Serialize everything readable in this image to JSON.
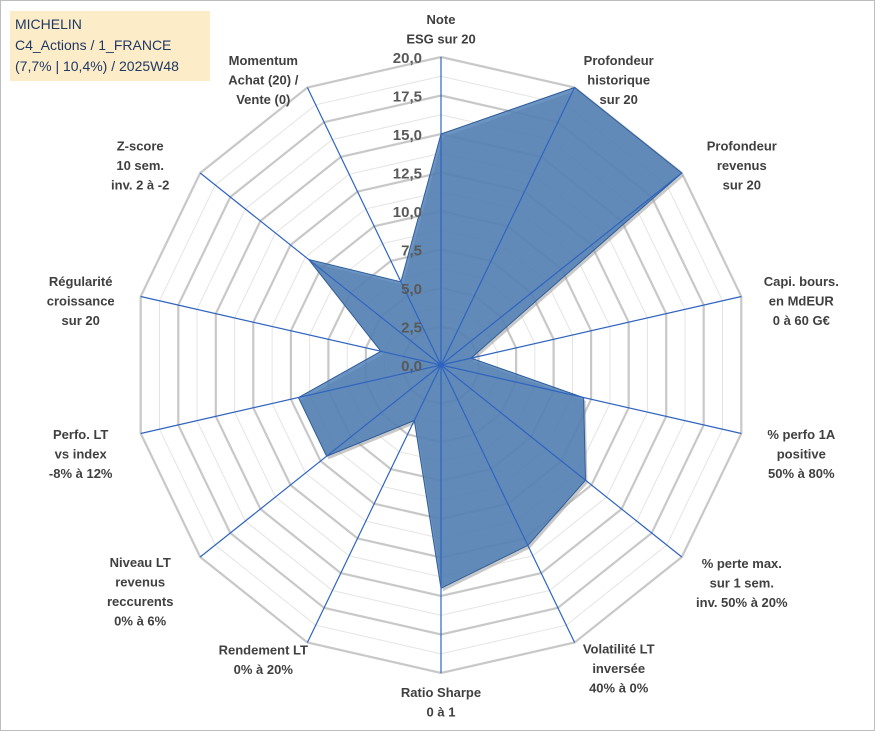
{
  "title_box": {
    "company": "MICHELIN",
    "category": "C4_Actions / 1_FRANCE",
    "period": "(7,7% | 10,4%) / 2025W48"
  },
  "colors": {
    "fill": "#4a7db4",
    "stroke": "#2f5d9a",
    "grid_major": "#c8c8c8",
    "grid_minor": "#e4e4e4",
    "spoke": "#2f64c0",
    "title_bg": "#fdecc8",
    "title_text": "#1f3864"
  },
  "chart_data": {
    "type": "radar",
    "title": "MICHELIN",
    "rlim": [
      0,
      20
    ],
    "ticks": [
      "0,0",
      "2,5",
      "5,0",
      "7,5",
      "10,0",
      "12,5",
      "15,0",
      "17,5",
      "20,0"
    ],
    "tick_values": [
      0,
      2.5,
      5,
      7.5,
      10,
      12.5,
      15,
      17.5,
      20
    ],
    "axes": [
      {
        "label": [
          "Note",
          "ESG sur 20"
        ],
        "value": 15.0
      },
      {
        "label": [
          "Profondeur",
          "historique",
          "sur 20"
        ],
        "value": 20.0
      },
      {
        "label": [
          "Profondeur",
          "revenus",
          "sur 20"
        ],
        "value": 20.0
      },
      {
        "label": [
          "Capi. bours.",
          "en MdEUR",
          "0 à 60 G€"
        ],
        "value": 2.0
      },
      {
        "label": [
          "% perfo 1A",
          "positive",
          "50% à 80%"
        ],
        "value": 9.5
      },
      {
        "label": [
          "% perte max.",
          "sur 1 sem.",
          "inv. 50% à 20%"
        ],
        "value": 12.0
      },
      {
        "label": [
          "Volatilité LT",
          "inversée",
          "40% à 0%"
        ],
        "value": 13.0
      },
      {
        "label": [
          "Ratio Sharpe",
          "0 à 1"
        ],
        "value": 14.5
      },
      {
        "label": [
          "Rendement LT",
          "0% à 20%"
        ],
        "value": 4.0
      },
      {
        "label": [
          "Niveau LT",
          "revenus",
          "reccurents",
          "0% à 6%"
        ],
        "value": 9.5
      },
      {
        "label": [
          "Perfo. LT",
          "vs index",
          "-8% à 12%"
        ],
        "value": 9.5
      },
      {
        "label": [
          "Régularité",
          "croissance",
          "sur 20"
        ],
        "value": 4.0
      },
      {
        "label": [
          "Z-score",
          "10 sem.",
          "inv. 2 à -2"
        ],
        "value": 11.0
      },
      {
        "label": [
          "Momentum",
          "Achat (20) /",
          "Vente (0)"
        ],
        "value": 6.0
      }
    ]
  }
}
